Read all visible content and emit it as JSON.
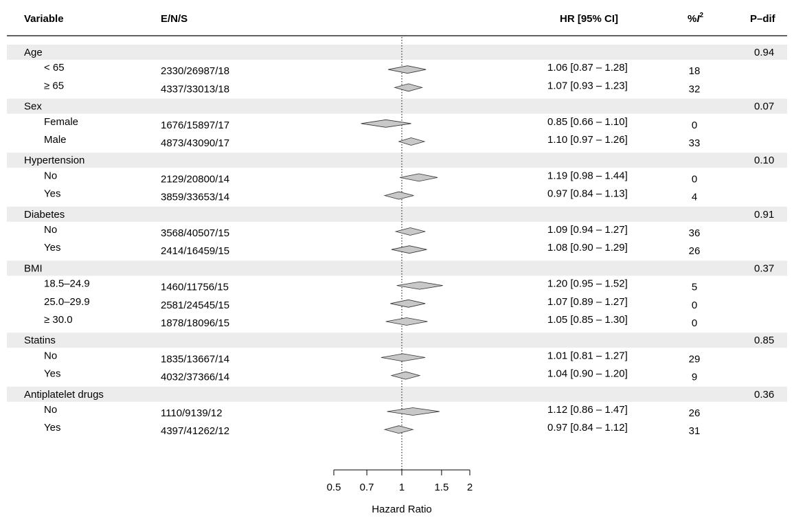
{
  "chart_data": {
    "type": "forest",
    "columns": {
      "variable": "Variable",
      "ens": "E/N/S",
      "hr": "HR [95% CI]",
      "i2_prefix": "%",
      "i2_letter": "I",
      "i2_sup": "2",
      "pdif": "P–dif"
    },
    "x_axis": {
      "label": "Hazard Ratio",
      "scale": "log",
      "ticks": [
        0.5,
        0.7,
        1,
        1.5,
        2
      ],
      "tick_labels": [
        "0.5",
        "0.7",
        "1",
        "1.5",
        "2"
      ],
      "xlim": [
        0.5,
        2
      ],
      "reference_line": 1
    },
    "groups": [
      {
        "label": "Age",
        "p_dif": "0.94",
        "rows": [
          {
            "label": "< 65",
            "ens": "2330/26987/18",
            "hr_text": "1.06 [0.87 – 1.28]",
            "i2": "18",
            "hr": 1.06,
            "lo": 0.87,
            "hi": 1.28
          },
          {
            "label": "≥ 65",
            "ens": "4337/33013/18",
            "hr_text": "1.07 [0.93 – 1.23]",
            "i2": "32",
            "hr": 1.07,
            "lo": 0.93,
            "hi": 1.23
          }
        ]
      },
      {
        "label": "Sex",
        "p_dif": "0.07",
        "rows": [
          {
            "label": "Female",
            "ens": "1676/15897/17",
            "hr_text": "0.85 [0.66 – 1.10]",
            "i2": "0",
            "hr": 0.85,
            "lo": 0.66,
            "hi": 1.1
          },
          {
            "label": "Male",
            "ens": "4873/43090/17",
            "hr_text": "1.10 [0.97 – 1.26]",
            "i2": "33",
            "hr": 1.1,
            "lo": 0.97,
            "hi": 1.26
          }
        ]
      },
      {
        "label": "Hypertension",
        "p_dif": "0.10",
        "rows": [
          {
            "label": "No",
            "ens": "2129/20800/14",
            "hr_text": "1.19 [0.98 – 1.44]",
            "i2": "0",
            "hr": 1.19,
            "lo": 0.98,
            "hi": 1.44
          },
          {
            "label": "Yes",
            "ens": "3859/33653/14",
            "hr_text": "0.97 [0.84 – 1.13]",
            "i2": "4",
            "hr": 0.97,
            "lo": 0.84,
            "hi": 1.13
          }
        ]
      },
      {
        "label": "Diabetes",
        "p_dif": "0.91",
        "rows": [
          {
            "label": "No",
            "ens": "3568/40507/15",
            "hr_text": "1.09 [0.94 – 1.27]",
            "i2": "36",
            "hr": 1.09,
            "lo": 0.94,
            "hi": 1.27
          },
          {
            "label": "Yes",
            "ens": "2414/16459/15",
            "hr_text": "1.08 [0.90 – 1.29]",
            "i2": "26",
            "hr": 1.08,
            "lo": 0.9,
            "hi": 1.29
          }
        ]
      },
      {
        "label": "BMI",
        "p_dif": "0.37",
        "rows": [
          {
            "label": "18.5–24.9",
            "ens": "1460/11756/15",
            "hr_text": "1.20 [0.95 – 1.52]",
            "i2": "5",
            "hr": 1.2,
            "lo": 0.95,
            "hi": 1.52
          },
          {
            "label": "25.0–29.9",
            "ens": "2581/24545/15",
            "hr_text": "1.07 [0.89 – 1.27]",
            "i2": "0",
            "hr": 1.07,
            "lo": 0.89,
            "hi": 1.27
          },
          {
            "label": "≥ 30.0",
            "ens": "1878/18096/15",
            "hr_text": "1.05 [0.85 – 1.30]",
            "i2": "0",
            "hr": 1.05,
            "lo": 0.85,
            "hi": 1.3
          }
        ]
      },
      {
        "label": "Statins",
        "p_dif": "0.85",
        "rows": [
          {
            "label": "No",
            "ens": "1835/13667/14",
            "hr_text": "1.01 [0.81 – 1.27]",
            "i2": "29",
            "hr": 1.01,
            "lo": 0.81,
            "hi": 1.27
          },
          {
            "label": "Yes",
            "ens": "4032/37366/14",
            "hr_text": "1.04 [0.90 – 1.20]",
            "i2": "9",
            "hr": 1.04,
            "lo": 0.9,
            "hi": 1.2
          }
        ]
      },
      {
        "label": "Antiplatelet drugs",
        "p_dif": "0.36",
        "rows": [
          {
            "label": "No",
            "ens": "1110/9139/12",
            "hr_text": "1.12 [0.86 – 1.47]",
            "i2": "26",
            "hr": 1.12,
            "lo": 0.86,
            "hi": 1.47
          },
          {
            "label": "Yes",
            "ens": "4397/41262/12",
            "hr_text": "0.97 [0.84 – 1.12]",
            "i2": "31",
            "hr": 0.97,
            "lo": 0.84,
            "hi": 1.12
          }
        ]
      }
    ],
    "colors": {
      "group_band": "#ececec",
      "diamond_fill": "#c8c8c8",
      "diamond_stroke": "#333333",
      "text": "#111111",
      "reference_line": "#000000"
    }
  }
}
